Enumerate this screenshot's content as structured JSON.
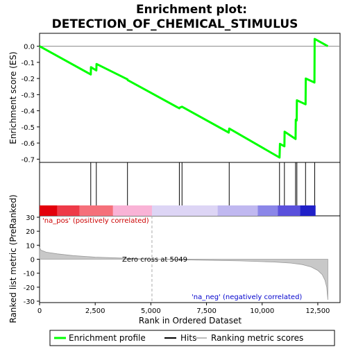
{
  "chart_data": {
    "type": "line",
    "title_line1": "Enrichment plot:",
    "title_line2": "DETECTION_OF_CHEMICAL_STIMULUS",
    "xlabel": "Rank in Ordered Dataset",
    "top_panel": {
      "ylabel": "Enrichment score (ES)",
      "ylim": [
        -0.72,
        0.08
      ],
      "yticks": [
        0.0,
        -0.1,
        -0.2,
        -0.3,
        -0.4,
        -0.5,
        -0.6,
        -0.7
      ],
      "ytick_labels": [
        "0.0",
        "-0.1",
        "-0.2",
        "-0.3",
        "-0.4",
        "-0.5",
        "-0.6",
        "-0.7"
      ],
      "series_color": "#00ff00",
      "es_points": [
        [
          0,
          0.0
        ],
        [
          2300,
          -0.175
        ],
        [
          2310,
          -0.13
        ],
        [
          2550,
          -0.15
        ],
        [
          2560,
          -0.11
        ],
        [
          3950,
          -0.205
        ],
        [
          3960,
          -0.21
        ],
        [
          6280,
          -0.385
        ],
        [
          6300,
          -0.38
        ],
        [
          6400,
          -0.375
        ],
        [
          8500,
          -0.535
        ],
        [
          8520,
          -0.51
        ],
        [
          10780,
          -0.69
        ],
        [
          10800,
          -0.605
        ],
        [
          11000,
          -0.62
        ],
        [
          11010,
          -0.53
        ],
        [
          11500,
          -0.575
        ],
        [
          11510,
          -0.455
        ],
        [
          11550,
          -0.46
        ],
        [
          11560,
          -0.335
        ],
        [
          11950,
          -0.36
        ],
        [
          11960,
          -0.2
        ],
        [
          12350,
          -0.225
        ],
        [
          12360,
          0.045
        ],
        [
          12950,
          0.0
        ]
      ]
    },
    "hits": [
      2300,
      2550,
      3950,
      6280,
      6400,
      8520,
      10780,
      11000,
      11500,
      11560,
      11950,
      12360
    ],
    "heatmap_colors": [
      "#e3000b",
      "#ee3a48",
      "#f5707a",
      "#f9b3d6",
      "#ddd5f5",
      "#c0b8f0",
      "#8b86e8",
      "#5a50dc",
      "#2020c8"
    ],
    "heatmap_breaks": [
      0,
      800,
      1800,
      3300,
      5050,
      8000,
      9800,
      10700,
      11700,
      12400,
      12950
    ],
    "bottom_panel": {
      "ylabel": "Ranked list metric (PreRanked)",
      "ylim": [
        -31,
        31
      ],
      "yticks": [
        30,
        20,
        10,
        0,
        -10,
        -20,
        -30
      ],
      "ytick_labels": [
        "30",
        "20",
        "10",
        "0",
        "-10",
        "-20",
        "-30"
      ],
      "metric_points": [
        [
          0,
          8.5
        ],
        [
          60,
          6.5
        ],
        [
          300,
          5.0
        ],
        [
          800,
          3.8
        ],
        [
          1500,
          2.6
        ],
        [
          2500,
          1.5
        ],
        [
          3500,
          0.9
        ],
        [
          5049,
          0.0
        ],
        [
          7000,
          -0.6
        ],
        [
          9000,
          -1.2
        ],
        [
          10500,
          -2.0
        ],
        [
          11300,
          -2.8
        ],
        [
          11800,
          -3.8
        ],
        [
          12200,
          -5.5
        ],
        [
          12500,
          -8.0
        ],
        [
          12700,
          -11.0
        ],
        [
          12820,
          -15.0
        ],
        [
          12900,
          -20.0
        ],
        [
          12950,
          -29.0
        ]
      ],
      "fill_color": "#c8c8c8",
      "annotations": {
        "pos_label": "'na_pos' (positively correlated)",
        "neg_label": "'na_neg' (negatively correlated)",
        "zero_cross": "Zero cross at 5049"
      }
    },
    "xlim": [
      0,
      13500
    ],
    "xticks": [
      0,
      2500,
      5000,
      7500,
      10000,
      12500
    ],
    "xtick_labels": [
      "0",
      "2,500",
      "5,000",
      "7,500",
      "10,000",
      "12,500"
    ],
    "zero_cross_x": 5049,
    "legend": {
      "items": [
        "Enrichment profile",
        "Hits",
        "Ranking metric scores"
      ],
      "colors": [
        "#00ff00",
        "#000000",
        "#bbbbbb"
      ]
    }
  }
}
